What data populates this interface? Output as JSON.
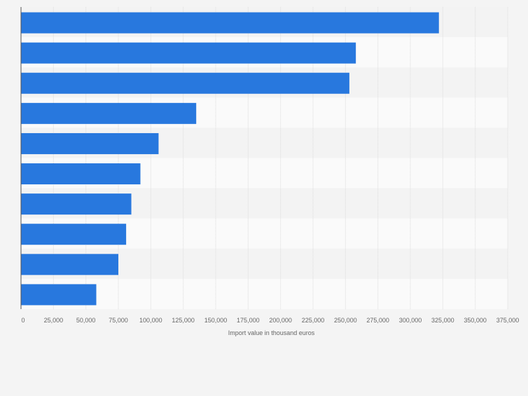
{
  "chart_data": {
    "type": "bar",
    "orientation": "horizontal",
    "categories": [
      "",
      "",
      "",
      "",
      "",
      "",
      "",
      "",
      "",
      ""
    ],
    "values": [
      322000,
      258000,
      253000,
      135000,
      106000,
      92000,
      85000,
      81000,
      75000,
      58000
    ],
    "title": "",
    "xlabel": "Import value in thousand euros",
    "ylabel": "",
    "xlim": [
      0,
      375000
    ],
    "ticks": [
      0,
      25000,
      50000,
      75000,
      100000,
      125000,
      150000,
      175000,
      200000,
      225000,
      250000,
      275000,
      300000,
      325000,
      350000,
      375000
    ],
    "tick_labels": [
      "0",
      "25,000",
      "50,000",
      "75,000",
      "100,000",
      "125,000",
      "150,000",
      "175,000",
      "200,000",
      "225,000",
      "250,000",
      "275,000",
      "300,000",
      "325,000",
      "350,000",
      "375,000"
    ],
    "grid": true,
    "legend": "none",
    "colors": {
      "bar": "#2878de",
      "band_light": "#fafafa",
      "band_dark": "#f3f3f3",
      "grid": "#dcdcdc",
      "axis": "#555555",
      "text": "#666666"
    }
  }
}
